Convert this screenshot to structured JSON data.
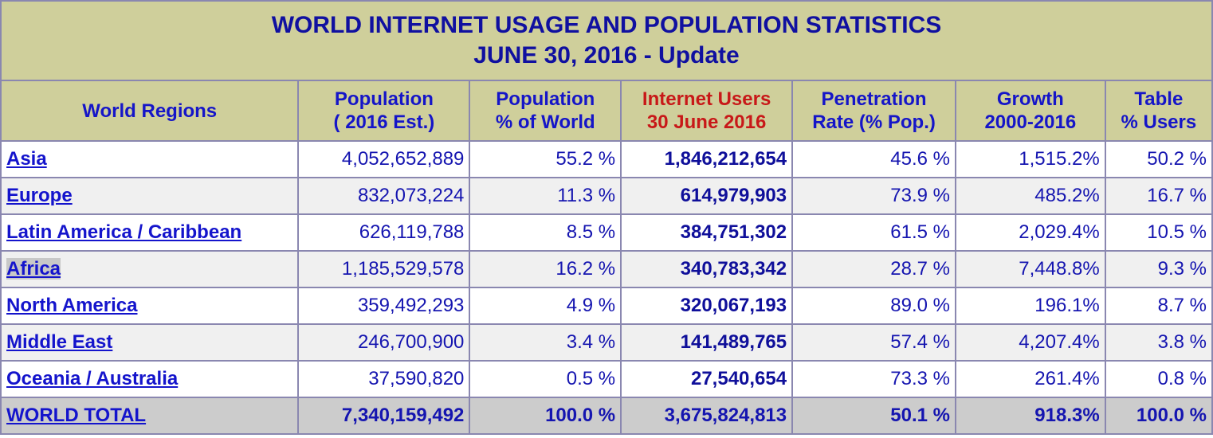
{
  "title": {
    "line1": "WORLD INTERNET USAGE AND POPULATION STATISTICS",
    "line2": "JUNE 30, 2016 - Update"
  },
  "headers": {
    "region": "World Regions",
    "population_l1": "Population",
    "population_l2": "( 2016 Est.)",
    "pct_world_l1": "Population",
    "pct_world_l2": "% of World",
    "users_l1": "Internet Users",
    "users_l2": "30 June 2016",
    "penetration_l1": "Penetration",
    "penetration_l2": "Rate (% Pop.)",
    "growth_l1": "Growth",
    "growth_l2": "2000-2016",
    "table_l1": "Table",
    "table_l2": "% Users"
  },
  "rows": [
    {
      "region": "Asia",
      "population": "4,052,652,889",
      "pct_world": "55.2 %",
      "users": "1,846,212,654",
      "penetration": "45.6 %",
      "growth": "1,515.2%",
      "table_pct": "50.2 %"
    },
    {
      "region": "Europe",
      "population": "832,073,224",
      "pct_world": "11.3 %",
      "users": "614,979,903",
      "penetration": "73.9 %",
      "growth": "485.2%",
      "table_pct": "16.7 %"
    },
    {
      "region": "Latin America / Caribbean",
      "population": "626,119,788",
      "pct_world": "8.5 %",
      "users": "384,751,302",
      "penetration": "61.5 %",
      "growth": "2,029.4%",
      "table_pct": "10.5 %"
    },
    {
      "region": "Africa",
      "population": "1,185,529,578",
      "pct_world": "16.2 %",
      "users": "340,783,342",
      "penetration": "28.7 %",
      "growth": "7,448.8%",
      "table_pct": "9.3 %"
    },
    {
      "region": "North America",
      "population": "359,492,293",
      "pct_world": "4.9 %",
      "users": "320,067,193",
      "penetration": "89.0 %",
      "growth": "196.1%",
      "table_pct": "8.7 %"
    },
    {
      "region": "Middle East",
      "population": "246,700,900",
      "pct_world": "3.4 %",
      "users": "141,489,765",
      "penetration": "57.4 %",
      "growth": "4,207.4%",
      "table_pct": "3.8 %"
    },
    {
      "region": "Oceania / Australia",
      "population": "37,590,820",
      "pct_world": "0.5 %",
      "users": "27,540,654",
      "penetration": "73.3 %",
      "growth": "261.4%",
      "table_pct": "0.8 %"
    }
  ],
  "total": {
    "region": "WORLD TOTAL",
    "population": "7,340,159,492",
    "pct_world": "100.0 %",
    "users": "3,675,824,813",
    "penetration": "50.1 %",
    "growth": "918.3%",
    "table_pct": "100.0 %"
  },
  "colors": {
    "header_bg": "#cfcf9b",
    "title_text": "#1010a0",
    "header_text": "#1515c8",
    "users_header_text": "#c81818",
    "border": "#8a87b0",
    "total_bg": "#cccccc"
  }
}
